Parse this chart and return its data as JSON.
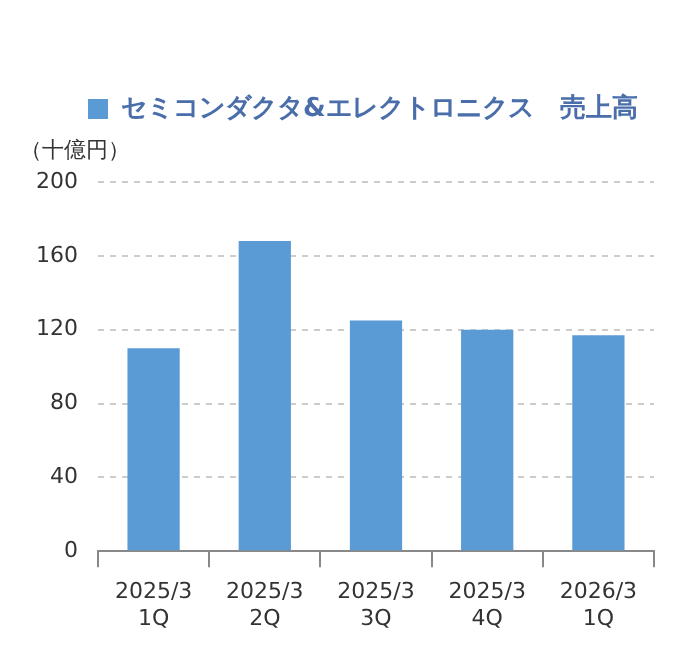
{
  "chart_data": {
    "type": "bar",
    "ylabel": "（十億円）",
    "categories": [
      "2025/3\n1Q",
      "2025/3\n2Q",
      "2025/3\n3Q",
      "2025/3\n4Q",
      "2026/3\n1Q"
    ],
    "series": [
      {
        "name": "セミコンダクタ&エレクトロニクス　売上高",
        "color": "#5b9bd5",
        "values": [
          110,
          168,
          125,
          120,
          117
        ]
      }
    ],
    "ylim": [
      0,
      200
    ],
    "yticks": [
      0,
      40,
      80,
      120,
      160,
      200
    ],
    "grid": "y",
    "legend": "top left"
  }
}
